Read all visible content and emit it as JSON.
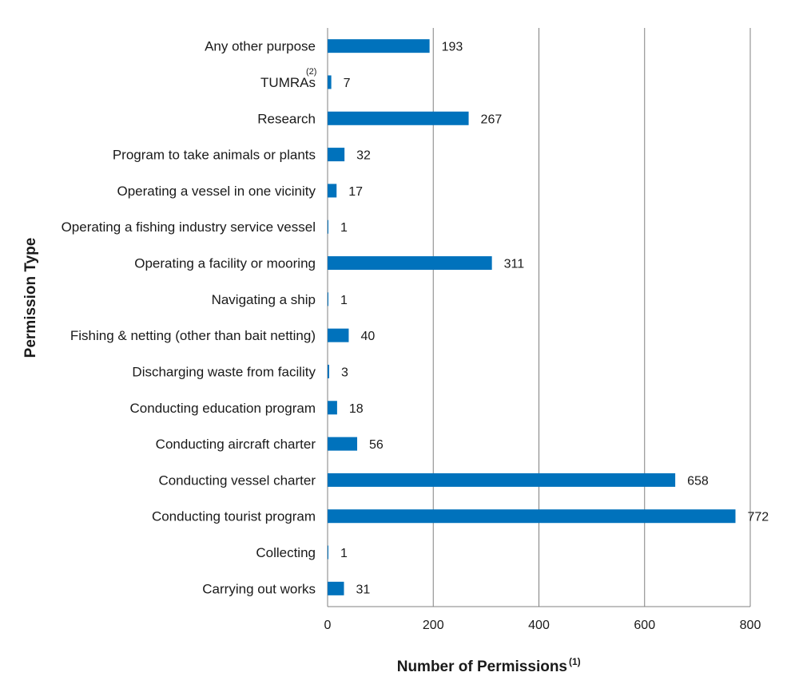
{
  "chart_data": {
    "type": "bar",
    "orientation": "horizontal",
    "categories": [
      {
        "label": "Any other purpose",
        "note": ""
      },
      {
        "label": "TUMRAs",
        "note": "(2)"
      },
      {
        "label": "Research",
        "note": ""
      },
      {
        "label": "Program to take animals or plants",
        "note": ""
      },
      {
        "label": "Operating a vessel in one vicinity",
        "note": ""
      },
      {
        "label": "Operating a fishing industry service vessel",
        "note": ""
      },
      {
        "label": "Operating a facility or mooring",
        "note": ""
      },
      {
        "label": "Navigating a ship",
        "note": ""
      },
      {
        "label": "Fishing & netting (other than bait netting)",
        "note": ""
      },
      {
        "label": "Discharging waste from facility",
        "note": ""
      },
      {
        "label": "Conducting education program",
        "note": ""
      },
      {
        "label": "Conducting aircraft charter",
        "note": ""
      },
      {
        "label": "Conducting vessel charter",
        "note": ""
      },
      {
        "label": "Conducting tourist program",
        "note": ""
      },
      {
        "label": "Collecting",
        "note": ""
      },
      {
        "label": "Carrying out works",
        "note": ""
      }
    ],
    "values": [
      193,
      7,
      267,
      32,
      17,
      1,
      311,
      1,
      40,
      3,
      18,
      56,
      658,
      772,
      1,
      31
    ],
    "xlim": [
      0,
      800
    ],
    "xticks": [
      0,
      200,
      400,
      600,
      800
    ],
    "xlabel": "Number of Permissions",
    "xlabel_note": "(1)",
    "ylabel": "Permission Type",
    "grid": "vertical",
    "bar_color": "#0072bc",
    "grid_color": "#808080",
    "legend": "none"
  }
}
